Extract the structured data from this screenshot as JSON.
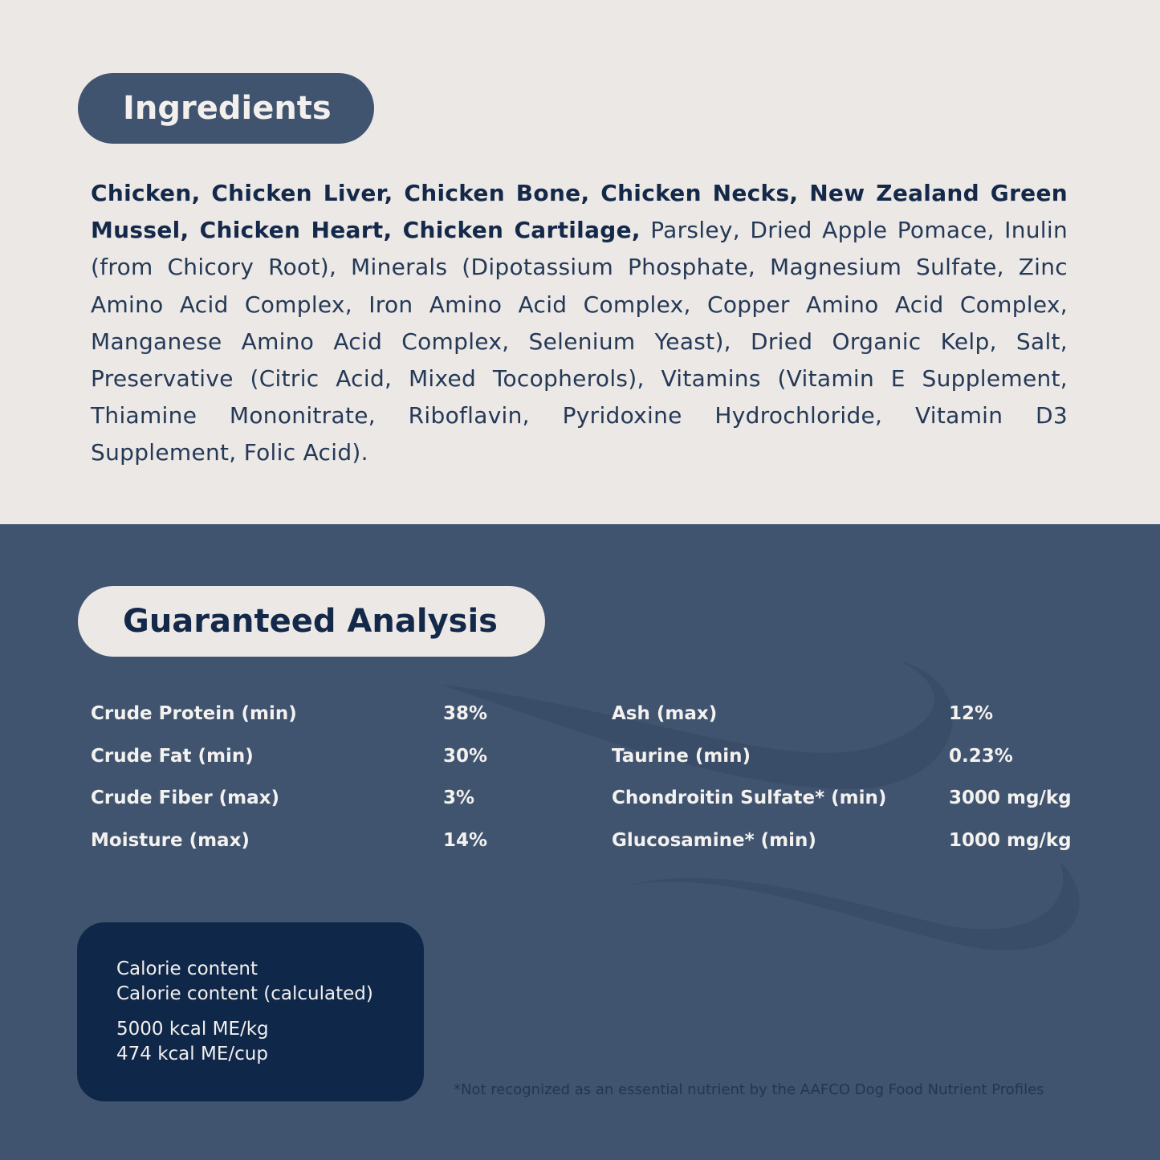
{
  "ingredients": {
    "title": "Ingredients",
    "bold_text": "Chicken, Chicken Liver, Chicken Bone, Chicken Necks, New Zealand Green Mussel, Chicken Heart, Chicken Cartilage,",
    "regular_text": " Parsley, Dried Apple Pomace, Inulin (from Chicory Root), Minerals (Dipotassium Phosphate, Magnesium Sulfate, Zinc Amino Acid Complex, Iron Amino Acid Complex, Copper Amino Acid Complex, Manganese Amino Acid Complex, Selenium Yeast), Dried Organic Kelp, Salt, Preservative (Citric Acid, Mixed Tocopherols), Vitamins (Vitamin E Supplement, Thiamine Mononitrate, Riboflavin, Pyridoxine Hydrochloride, Vitamin D3 Supplement, Folic Acid)."
  },
  "analysis": {
    "title": "Guaranteed Analysis",
    "left": [
      {
        "label": "Crude Protein (min)",
        "value": "38%"
      },
      {
        "label": "Crude Fat (min)",
        "value": "30%"
      },
      {
        "label": "Crude Fiber (max)",
        "value": "3%"
      },
      {
        "label": "Moisture (max)",
        "value": "14%"
      }
    ],
    "right": [
      {
        "label": "Ash (max)",
        "value": "12%"
      },
      {
        "label": "Taurine (min)",
        "value": "0.23%"
      },
      {
        "label": "Chondroitin Sulfate* (min)",
        "value": "3000 mg/kg"
      },
      {
        "label": "Glucosamine* (min)",
        "value": "1000 mg/kg"
      }
    ]
  },
  "calorie": {
    "line1": "Calorie content",
    "line2": "Calorie content (calculated)",
    "value1": "5000 kcal ME/kg",
    "value2": "474 kcal ME/cup"
  },
  "footnote": "*Not recognized as an essential nutrient by the AAFCO Dog Food Nutrient Profiles",
  "colors": {
    "light_bg": "#ebe8e5",
    "slate_bg": "#40546f",
    "navy": "#0f284a"
  }
}
